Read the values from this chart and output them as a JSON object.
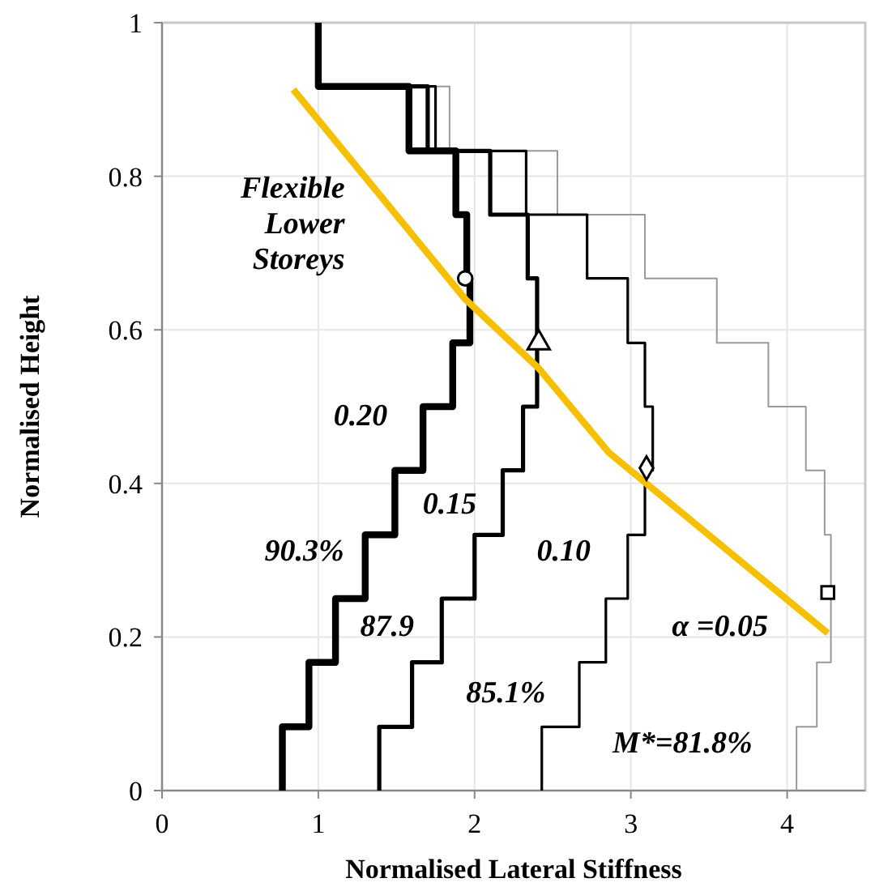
{
  "chart_data": {
    "type": "line",
    "xlabel": "Normalised Lateral Stiffness",
    "ylabel": "Normalised Height",
    "xlim": [
      0,
      4.5
    ],
    "xticks": [
      0,
      1,
      2,
      3,
      4
    ],
    "ylim": [
      0,
      1
    ],
    "yticks": [
      0,
      {
        "value": 0.2,
        "label": "0.2"
      },
      {
        "value": 0.4,
        "label": "0.4"
      },
      {
        "value": 0.6,
        "label": "0.6"
      },
      {
        "value": 0.8,
        "label": "0.8"
      },
      1
    ],
    "grid": true,
    "line_style": "solid",
    "series": [
      {
        "color": "#999999",
        "x": [
          4.06,
          4.06,
          4.19,
          4.19,
          4.28,
          4.28,
          4.28,
          4.28,
          4.24,
          4.24,
          4.12,
          4.12,
          3.88,
          3.88,
          3.55,
          3.55,
          3.09,
          3.09,
          2.53,
          2.53,
          1.84,
          1.84,
          1.0,
          1.0
        ],
        "values": [
          0,
          0.083,
          0.083,
          0.167,
          0.167,
          0.25,
          0.25,
          0.333,
          0.333,
          0.417,
          0.417,
          0.5,
          0.5,
          0.583,
          0.583,
          0.667,
          0.667,
          0.75,
          0.75,
          0.833,
          0.833,
          0.917,
          0.917,
          1
        ]
      },
      {
        "color": "#000000",
        "x": [
          2.43,
          2.43,
          2.67,
          2.67,
          2.84,
          2.84,
          2.98,
          2.98,
          3.09,
          3.09,
          3.14,
          3.14,
          3.09,
          3.09,
          2.98,
          2.98,
          2.72,
          2.72,
          2.33,
          2.33,
          1.75,
          1.75,
          1.0,
          1.0
        ],
        "values": [
          0,
          0.083,
          0.083,
          0.167,
          0.167,
          0.25,
          0.25,
          0.333,
          0.333,
          0.417,
          0.417,
          0.5,
          0.5,
          0.583,
          0.583,
          0.667,
          0.667,
          0.75,
          0.75,
          0.833,
          0.833,
          0.917,
          0.917,
          1
        ]
      },
      {
        "color": "#000000",
        "x": [
          1.39,
          1.39,
          1.6,
          1.6,
          1.79,
          1.79,
          2.0,
          2.0,
          2.18,
          2.18,
          2.31,
          2.31,
          2.4,
          2.4,
          2.4,
          2.4,
          2.34,
          2.34,
          2.1,
          2.1,
          1.7,
          1.7,
          1.0,
          1.0
        ],
        "values": [
          0,
          0.083,
          0.083,
          0.167,
          0.167,
          0.25,
          0.25,
          0.333,
          0.333,
          0.417,
          0.417,
          0.5,
          0.5,
          0.583,
          0.583,
          0.667,
          0.667,
          0.75,
          0.75,
          0.833,
          0.833,
          0.917,
          0.917,
          1
        ]
      },
      {
        "color": "#000000",
        "x": [
          0.77,
          0.77,
          0.94,
          0.94,
          1.11,
          1.11,
          1.3,
          1.3,
          1.49,
          1.49,
          1.67,
          1.67,
          1.86,
          1.86,
          1.97,
          1.97,
          1.95,
          1.95,
          1.88,
          1.88,
          1.58,
          1.58,
          1.0,
          1.0
        ],
        "values": [
          0,
          0.083,
          0.083,
          0.167,
          0.167,
          0.25,
          0.25,
          0.333,
          0.333,
          0.417,
          0.417,
          0.5,
          0.5,
          0.583,
          0.583,
          0.667,
          0.667,
          0.75,
          0.75,
          0.833,
          0.833,
          0.917,
          0.917,
          1
        ]
      },
      {
        "color": "#f5c000",
        "x": [
          0.84,
          1.94,
          2.41,
          2.86,
          4.26
        ],
        "values": [
          0.913,
          0.64,
          0.55,
          0.44,
          0.205
        ]
      },
      {
        "type": "scatter",
        "color": "#000000",
        "marker": "circle",
        "x": [
          1.94
        ],
        "values": [
          0.667
        ]
      },
      {
        "type": "scatter",
        "color": "#000000",
        "marker": "triangle",
        "x": [
          2.41
        ],
        "values": [
          0.583
        ]
      },
      {
        "type": "scatter",
        "color": "#000000",
        "marker": "diamond",
        "x": [
          3.1
        ],
        "values": [
          0.42
        ]
      },
      {
        "type": "scatter",
        "color": "#000000",
        "marker": "square",
        "x": [
          4.26
        ],
        "values": [
          0.258
        ]
      }
    ],
    "annotations": [
      "Flexible\nLower\nStoreys",
      "0.20",
      "0.15",
      "0.10",
      "α =0.05",
      "90.3%",
      "87.9",
      "85.1%",
      "M*=81.8%"
    ]
  }
}
